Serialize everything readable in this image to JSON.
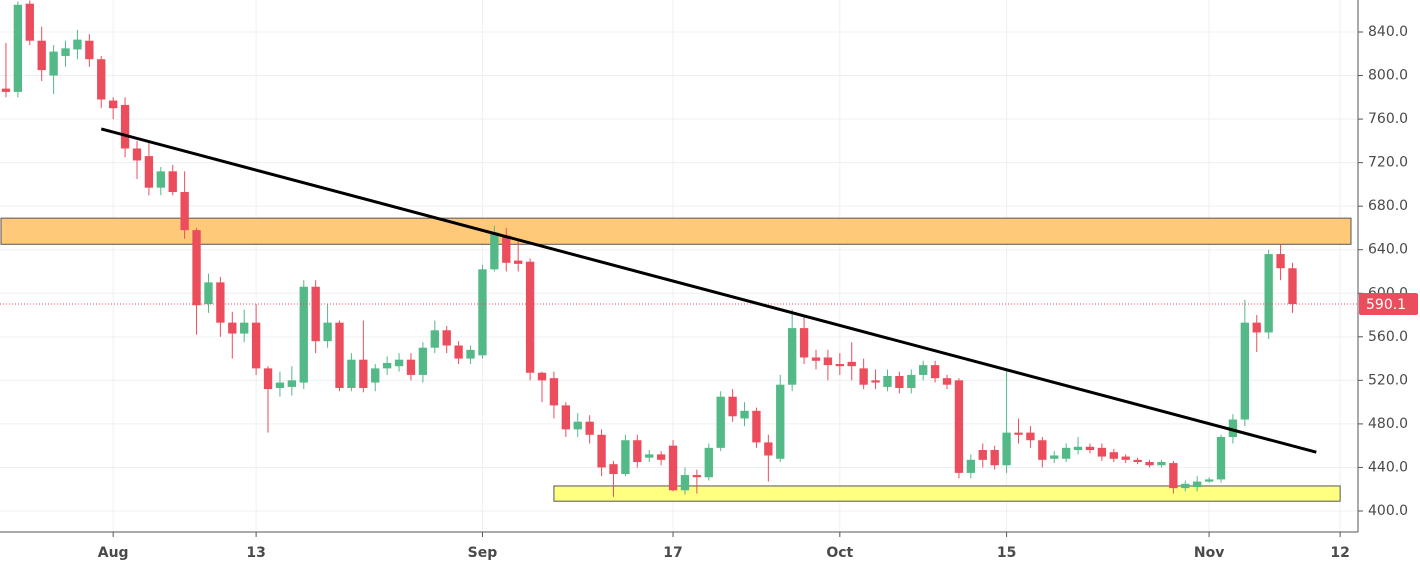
{
  "chart_data": {
    "type": "candlestick",
    "categories": [
      "Jul 23",
      "Jul 24",
      "Jul 25",
      "Jul 26",
      "Jul 27",
      "Jul 28",
      "Jul 29",
      "Jul 30",
      "Jul 31",
      "Aug 1",
      "Aug 2",
      "Aug 3",
      "Aug 4",
      "Aug 5",
      "Aug 6",
      "Aug 7",
      "Aug 8",
      "Aug 9",
      "Aug 10",
      "Aug 11",
      "Aug 12",
      "Aug 13",
      "Aug 14",
      "Aug 15",
      "Aug 16",
      "Aug 17",
      "Aug 18",
      "Aug 19",
      "Aug 20",
      "Aug 21",
      "Aug 22",
      "Aug 23",
      "Aug 24",
      "Aug 25",
      "Aug 26",
      "Aug 27",
      "Aug 28",
      "Aug 29",
      "Aug 30",
      "Aug 31",
      "Sep 1",
      "Sep 2",
      "Sep 3",
      "Sep 4",
      "Sep 5",
      "Sep 6",
      "Sep 7",
      "Sep 8",
      "Sep 9",
      "Sep 10",
      "Sep 11",
      "Sep 12",
      "Sep 13",
      "Sep 14",
      "Sep 15",
      "Sep 16",
      "Sep 17",
      "Sep 18",
      "Sep 19",
      "Sep 20",
      "Sep 21",
      "Sep 22",
      "Sep 23",
      "Sep 24",
      "Sep 25",
      "Sep 26",
      "Sep 27",
      "Sep 28",
      "Sep 29",
      "Sep 30",
      "Oct 1",
      "Oct 2",
      "Oct 3",
      "Oct 4",
      "Oct 5",
      "Oct 6",
      "Oct 7",
      "Oct 8",
      "Oct 9",
      "Oct 10",
      "Oct 11",
      "Oct 12",
      "Oct 13",
      "Oct 14",
      "Oct 15",
      "Oct 16",
      "Oct 17",
      "Oct 18",
      "Oct 19",
      "Oct 20",
      "Oct 21",
      "Oct 22",
      "Oct 23",
      "Oct 24",
      "Oct 25",
      "Oct 26",
      "Oct 27",
      "Oct 28",
      "Oct 29",
      "Oct 30",
      "Oct 31",
      "Nov 1",
      "Nov 2",
      "Nov 3",
      "Nov 4",
      "Nov 5",
      "Nov 6",
      "Nov 7",
      "Nov 8",
      "Nov 9",
      "Nov 10",
      "Nov 11",
      "Nov 12",
      "Nov 13"
    ],
    "open": [
      788,
      785,
      866,
      832,
      800,
      818,
      824,
      832,
      815,
      777,
      773,
      733,
      726,
      697,
      712,
      693,
      658,
      590,
      610,
      573,
      563,
      573,
      531,
      513,
      514,
      518,
      606,
      556,
      573,
      513,
      539,
      518,
      531,
      533,
      539,
      525,
      550,
      566,
      552,
      540,
      543,
      622,
      653,
      630,
      629,
      527,
      522,
      497,
      475,
      482,
      470,
      443,
      434,
      465,
      449,
      452,
      460,
      419,
      433,
      431,
      458,
      505,
      485,
      492,
      463,
      448,
      516,
      568,
      541,
      541,
      535,
      537,
      531,
      520,
      514,
      524,
      513,
      525,
      534,
      522,
      520,
      435,
      456,
      456,
      442,
      472,
      472,
      465,
      448,
      448,
      456,
      459,
      458,
      454,
      450,
      447,
      445,
      442,
      444,
      421,
      422,
      427,
      429,
      468,
      484,
      573,
      564,
      636,
      623,
      null,
      null,
      null,
      null,
      null
    ],
    "high": [
      830,
      868,
      869,
      845,
      828,
      832,
      842,
      838,
      818,
      780,
      780,
      740,
      738,
      716,
      718,
      712,
      660,
      618,
      615,
      583,
      585,
      590,
      533,
      528,
      533,
      612,
      612,
      590,
      575,
      545,
      575,
      535,
      542,
      545,
      545,
      555,
      575,
      570,
      556,
      552,
      626,
      662,
      660,
      650,
      632,
      528,
      528,
      500,
      490,
      488,
      475,
      446,
      470,
      470,
      456,
      455,
      465,
      440,
      438,
      462,
      510,
      512,
      500,
      495,
      470,
      525,
      585,
      580,
      548,
      548,
      545,
      555,
      540,
      530,
      530,
      528,
      530,
      538,
      538,
      525,
      522,
      452,
      462,
      460,
      530,
      485,
      478,
      468,
      455,
      462,
      468,
      462,
      462,
      457,
      452,
      449,
      447,
      447,
      446,
      428,
      432,
      431,
      470,
      489,
      594,
      580,
      640,
      645,
      628,
      null,
      null,
      null,
      null,
      null
    ],
    "low": [
      780,
      780,
      828,
      795,
      783,
      808,
      815,
      808,
      770,
      760,
      725,
      705,
      690,
      690,
      690,
      650,
      562,
      582,
      560,
      540,
      555,
      525,
      472,
      505,
      506,
      512,
      545,
      550,
      510,
      510,
      509,
      510,
      525,
      528,
      520,
      518,
      545,
      545,
      535,
      535,
      540,
      620,
      620,
      620,
      520,
      500,
      485,
      468,
      468,
      462,
      432,
      413,
      432,
      440,
      445,
      442,
      418,
      415,
      416,
      428,
      455,
      482,
      478,
      458,
      427,
      445,
      510,
      535,
      530,
      520,
      525,
      520,
      512,
      512,
      510,
      508,
      508,
      520,
      518,
      512,
      430,
      430,
      440,
      438,
      435,
      462,
      458,
      440,
      444,
      445,
      452,
      453,
      446,
      445,
      444,
      443,
      440,
      440,
      416,
      418,
      418,
      426,
      426,
      462,
      478,
      546,
      558,
      612,
      582,
      null,
      null,
      null,
      null,
      null
    ],
    "close": [
      785,
      865,
      832,
      805,
      822,
      825,
      833,
      815,
      778,
      770,
      733,
      722,
      697,
      712,
      693,
      658,
      589,
      610,
      573,
      563,
      573,
      531,
      512,
      518,
      520,
      606,
      556,
      573,
      513,
      539,
      513,
      531,
      536,
      539,
      525,
      550,
      566,
      552,
      540,
      548,
      622,
      656,
      628,
      627,
      527,
      520,
      497,
      475,
      482,
      470,
      440,
      434,
      465,
      445,
      452,
      447,
      419,
      433,
      431,
      458,
      505,
      487,
      492,
      463,
      451,
      516,
      568,
      541,
      538,
      534,
      533,
      533,
      516,
      518,
      524,
      513,
      525,
      534,
      522,
      516,
      435,
      447,
      447,
      442,
      472,
      470,
      465,
      447,
      451,
      458,
      459,
      456,
      450,
      448,
      447,
      445,
      442,
      445,
      421,
      425,
      427,
      429,
      468,
      484,
      573,
      564,
      636,
      623,
      590.1,
      null,
      null,
      null,
      null,
      null
    ],
    "up_color": "#53b987",
    "down_color": "#eb4d5c",
    "ylim": [
      380.7,
      869.4
    ],
    "yticks": [
      {
        "value": 400,
        "label": "400.0"
      },
      {
        "value": 440,
        "label": "440.0"
      },
      {
        "value": 480,
        "label": "480.0"
      },
      {
        "value": 520,
        "label": "520.0"
      },
      {
        "value": 560,
        "label": "560.0"
      },
      {
        "value": 600,
        "label": "600.0"
      },
      {
        "value": 640,
        "label": "640.0"
      },
      {
        "value": 680,
        "label": "680.0"
      },
      {
        "value": 720,
        "label": "720.0"
      },
      {
        "value": 760,
        "label": "760.0"
      },
      {
        "value": 800,
        "label": "800.0"
      },
      {
        "value": 840,
        "label": "840.0"
      }
    ],
    "xticks": [
      {
        "value": "Aug 1",
        "label": "Aug"
      },
      {
        "value": "Aug 13",
        "label": "13"
      },
      {
        "value": "Sep 1",
        "label": "Sep"
      },
      {
        "value": "Sep 17",
        "label": "17"
      },
      {
        "value": "Oct 1",
        "label": "Oct"
      },
      {
        "value": "Oct 15",
        "label": "15"
      },
      {
        "value": "Nov 1",
        "label": "Nov"
      },
      {
        "value": "Nov 12",
        "label": "12"
      }
    ],
    "grid": true,
    "last_price": 590.1,
    "zones": [
      {
        "from": 645,
        "to": 669,
        "color": "#ffc97a"
      },
      {
        "from": 409,
        "to": 423,
        "x": [
          "Sep 7",
          "Nov 12"
        ],
        "color": "#ffff80"
      }
    ],
    "trendline": {
      "x": [
        "Jul 31",
        "Nov 10"
      ],
      "values": [
        751,
        454
      ],
      "color": "#000000"
    }
  }
}
